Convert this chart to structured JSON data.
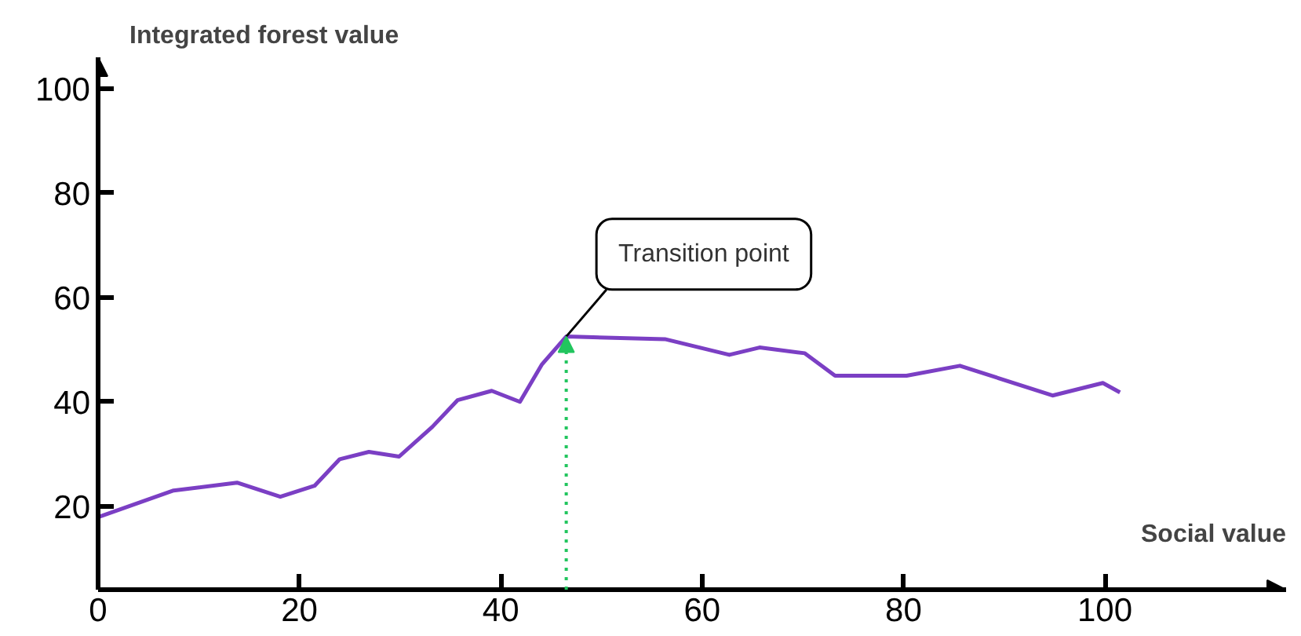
{
  "chart_data": {
    "type": "line",
    "xlabel": "Social value",
    "ylabel": "Integrated forest value",
    "x": [
      0,
      7.5,
      13.8,
      18.1,
      21.5,
      24,
      26.9,
      29.9,
      33.2,
      35.7,
      39.1,
      41.9,
      44.1,
      46.5,
      56.3,
      62.7,
      65.7,
      70.2,
      73.2,
      80.3,
      85.6,
      94.8,
      99.8,
      101.5
    ],
    "series": [
      {
        "color": "#7b3fc4",
        "values": [
          17.9,
          23,
          24.5,
          21.8,
          23.9,
          29,
          30.4,
          29.5,
          35.2,
          40.3,
          42.1,
          40,
          47.2,
          52.5,
          52,
          49,
          50.4,
          49.3,
          45,
          45,
          46.9,
          41.2,
          43.6,
          41.8
        ]
      }
    ],
    "xlim": [
      0,
      118
    ],
    "ylim": [
      4,
      106
    ],
    "xticks": [
      0,
      20,
      40,
      60,
      80,
      100
    ],
    "yticks": [
      20,
      40,
      60,
      80,
      100
    ],
    "grid": false,
    "marker": "none",
    "line_style": "solid",
    "ref_lines": [
      {
        "axis": "x",
        "value": 46.5,
        "color": "#22c55e",
        "line_style": "dotted"
      }
    ],
    "annotations": [
      {
        "text": "Transition point",
        "x": 46.5,
        "y": 52.5
      }
    ]
  }
}
